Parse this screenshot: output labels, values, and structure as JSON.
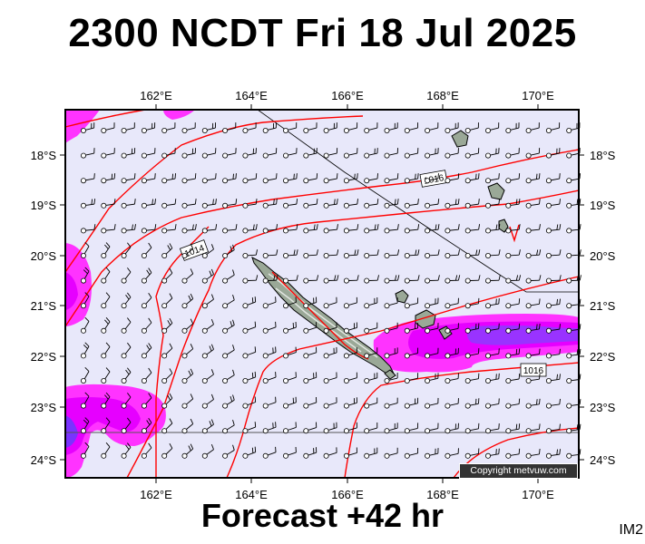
{
  "title": "2300 NCDT Fri 18 Jul 2025",
  "footer": "Forecast +42 hr",
  "image_tag": "IM2",
  "copyright": "Copyright metvuw.com",
  "axes": {
    "longitude_labels": [
      "162°E",
      "164°E",
      "166°E",
      "168°E",
      "170°E"
    ],
    "latitude_labels": [
      "18°S",
      "19°S",
      "20°S",
      "21°S",
      "22°S",
      "23°S",
      "24°S"
    ]
  },
  "isobar_labels": [
    "1014",
    "1016",
    "1016"
  ],
  "colors": {
    "sea_background": "#e8e8fa",
    "rain_light": "#ff33ff",
    "rain_medium": "#cc00ff",
    "rain_heavy": "#7a33ff",
    "isobar": "#ff0000",
    "land": "#9aa897"
  }
}
